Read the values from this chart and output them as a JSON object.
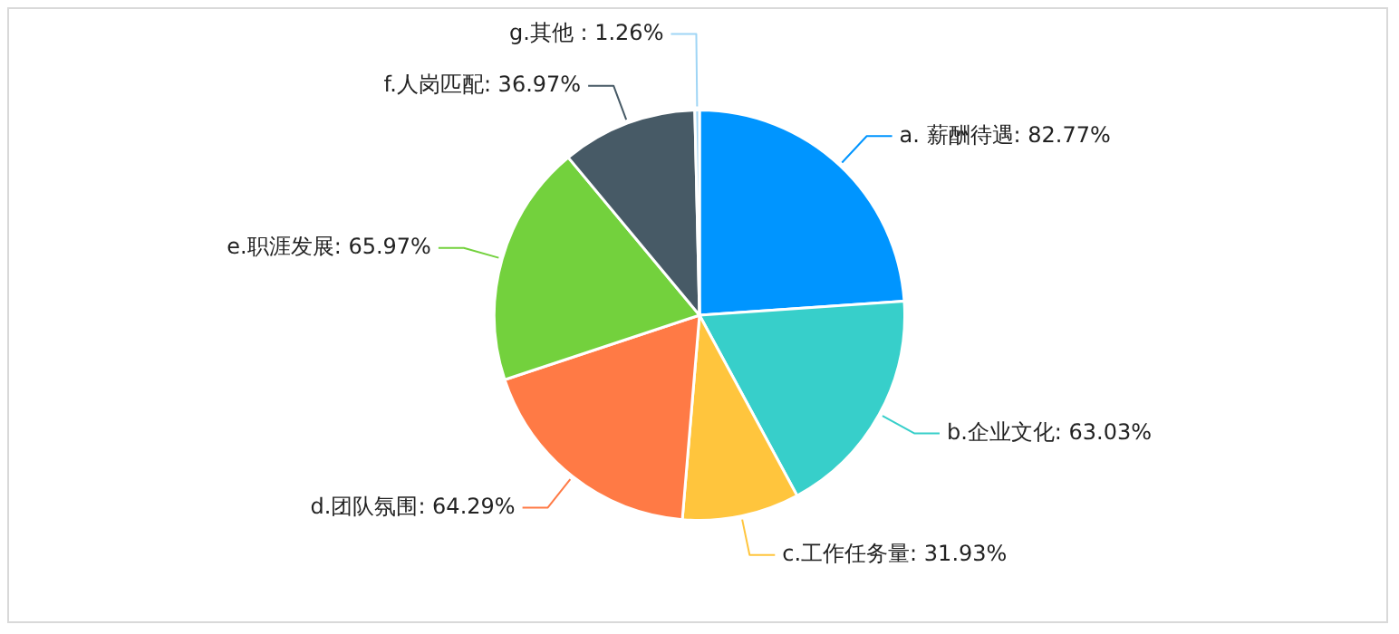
{
  "chart_data": {
    "type": "pie",
    "categories": [
      "a. 薪酬待遇",
      "b.企业文化",
      "c.工作任务量",
      "d.团队氛围",
      "e.职涯发展",
      "f.人岗匹配",
      "g.其他 "
    ],
    "values": [
      82.77,
      63.03,
      31.93,
      64.29,
      65.97,
      36.97,
      1.26
    ],
    "value_labels": [
      "82.77%",
      "63.03%",
      "31.93%",
      "64.29%",
      "65.97%",
      "36.97%",
      "1.26%"
    ],
    "colors": [
      "#0095ff",
      "#37cfca",
      "#ffc53d",
      "#ff7a45",
      "#73d13d",
      "#475a66",
      "#9fd5f5"
    ],
    "legend": false
  }
}
